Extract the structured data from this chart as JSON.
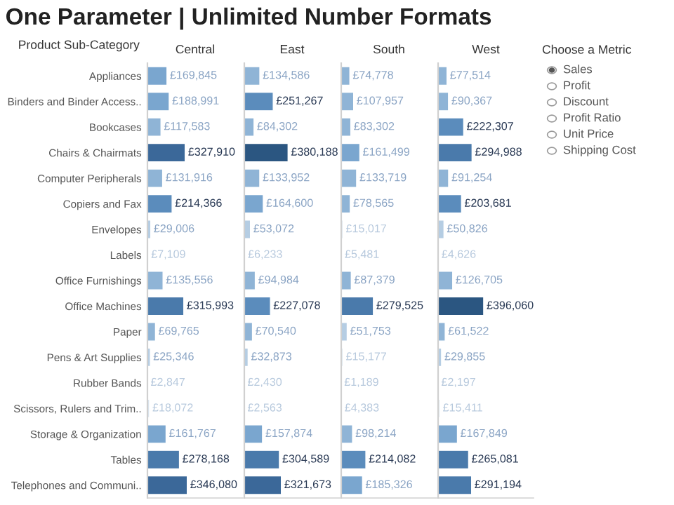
{
  "chart_data": [
    {
      "type": "bar",
      "orientation": "horizontal",
      "title": "One Parameter | Unlimited Number Formats",
      "subtitle": "Central",
      "ylabel": "Product Sub-Category",
      "tick_labels": "y",
      "xlim": [
        0,
        830000
      ],
      "categories": [
        "Appliances",
        "Binders and Binder Access..",
        "Bookcases",
        "Chairs & Chairmats",
        "Computer Peripherals",
        "Copiers and Fax",
        "Envelopes",
        "Labels",
        "Office Furnishings",
        "Office Machines",
        "Paper",
        "Pens & Art Supplies",
        "Rubber Bands",
        "Scissors, Rulers and Trim..",
        "Storage & Organization",
        "Tables",
        "Telephones and Communi.."
      ],
      "values": [
        169845,
        188991,
        117583,
        327910,
        131916,
        214366,
        29006,
        7109,
        135556,
        315993,
        69765,
        25346,
        2847,
        18072,
        161767,
        278168,
        346080
      ],
      "value_labels": [
        "£169,845",
        "£188,991",
        "£117,583",
        "£327,910",
        "£131,916",
        "£214,366",
        "£29,006",
        "£7,109",
        "£135,556",
        "£315,993",
        "£69,765",
        "£25,346",
        "£2,847",
        "£18,072",
        "£161,767",
        "£278,168",
        "£346,080"
      ],
      "colors": [
        "#7aa6cf",
        "#7aa6cf",
        "#8fb4d6",
        "#3b6899",
        "#8fb4d6",
        "#5b8cbc",
        "#b5cde3",
        "#dbe6f0",
        "#8fb4d6",
        "#4a7aab",
        "#8fb4d6",
        "#b5cde3",
        "#dbe6f0",
        "#dbe6f0",
        "#7aa6cf",
        "#4a7aab",
        "#3b6899"
      ]
    },
    {
      "type": "bar",
      "orientation": "horizontal",
      "subtitle": "East",
      "tick_labels": false,
      "xlim": [
        0,
        830000
      ],
      "categories": [
        null,
        null,
        null,
        null,
        null,
        null,
        null,
        null,
        null,
        null,
        null,
        null,
        null,
        null,
        null,
        null,
        null
      ],
      "values": [
        134586,
        251267,
        84302,
        380188,
        133952,
        164600,
        53072,
        6233,
        94984,
        227078,
        70540,
        32873,
        2430,
        2563,
        157874,
        304589,
        321673
      ],
      "value_labels": [
        "£134,586",
        "£251,267",
        "£84,302",
        "£380,188",
        "£133,952",
        "£164,600",
        "£53,072",
        "£6,233",
        "£94,984",
        "£227,078",
        "£70,540",
        "£32,873",
        "£2,430",
        "£2,563",
        "£157,874",
        "£304,589",
        "£321,673"
      ],
      "colors": [
        "#8fb4d6",
        "#5b8cbc",
        "#8fb4d6",
        "#2b5681",
        "#8fb4d6",
        "#7aa6cf",
        "#b5cde3",
        "#dbe6f0",
        "#8fb4d6",
        "#5b8cbc",
        "#8fb4d6",
        "#b5cde3",
        "#dbe6f0",
        "#dbe6f0",
        "#7aa6cf",
        "#4a7aab",
        "#3b6899"
      ]
    },
    {
      "type": "bar",
      "orientation": "horizontal",
      "subtitle": "South",
      "tick_labels": false,
      "xlim": [
        0,
        830000
      ],
      "categories": [
        null,
        null,
        null,
        null,
        null,
        null,
        null,
        null,
        null,
        null,
        null,
        null,
        null,
        null,
        null,
        null,
        null
      ],
      "values": [
        74778,
        107957,
        83302,
        161499,
        133719,
        78565,
        15017,
        5481,
        87379,
        279525,
        51753,
        15177,
        1189,
        4383,
        98214,
        214082,
        185326
      ],
      "value_labels": [
        "£74,778",
        "£107,957",
        "£83,302",
        "£161,499",
        "£133,719",
        "£78,565",
        "£15,017",
        "£5,481",
        "£87,379",
        "£279,525",
        "£51,753",
        "£15,177",
        "£1,189",
        "£4,383",
        "£98,214",
        "£214,082",
        "£185,326"
      ],
      "colors": [
        "#8fb4d6",
        "#8fb4d6",
        "#8fb4d6",
        "#7aa6cf",
        "#8fb4d6",
        "#8fb4d6",
        "#dbe6f0",
        "#dbe6f0",
        "#8fb4d6",
        "#4a7aab",
        "#b5cde3",
        "#dbe6f0",
        "#dbe6f0",
        "#dbe6f0",
        "#8fb4d6",
        "#5b8cbc",
        "#7aa6cf"
      ]
    },
    {
      "type": "bar",
      "orientation": "horizontal",
      "subtitle": "West",
      "tick_labels": false,
      "xlim": [
        0,
        830000
      ],
      "categories": [
        null,
        null,
        null,
        null,
        null,
        null,
        null,
        null,
        null,
        null,
        null,
        null,
        null,
        null,
        null,
        null,
        null
      ],
      "values": [
        77514,
        90367,
        222307,
        294988,
        91254,
        203681,
        50826,
        4626,
        126705,
        396060,
        61522,
        29855,
        2197,
        15411,
        167849,
        265081,
        291194
      ],
      "value_labels": [
        "£77,514",
        "£90,367",
        "£222,307",
        "£294,988",
        "£91,254",
        "£203,681",
        "£50,826",
        "£4,626",
        "£126,705",
        "£396,060",
        "£61,522",
        "£29,855",
        "£2,197",
        "£15,411",
        "£167,849",
        "£265,081",
        "£291,194"
      ],
      "colors": [
        "#8fb4d6",
        "#8fb4d6",
        "#5b8cbc",
        "#4a7aab",
        "#8fb4d6",
        "#5b8cbc",
        "#b5cde3",
        "#dbe6f0",
        "#8fb4d6",
        "#2b5681",
        "#8fb4d6",
        "#b5cde3",
        "#dbe6f0",
        "#dbe6f0",
        "#7aa6cf",
        "#4a7aab",
        "#4a7aab"
      ]
    },
    {
      "type": "other",
      "title": "Choose a Metric",
      "annotations": [
        "Sales",
        "Profit",
        "Discount",
        "Profit Ratio",
        "Unit Price",
        "Shipping Cost"
      ]
    }
  ]
}
